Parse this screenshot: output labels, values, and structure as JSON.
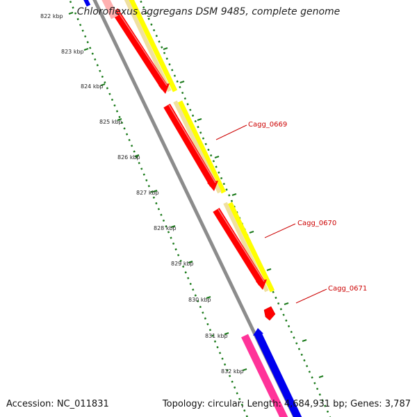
{
  "title": "Chloroflexus aggregans DSM 9485, complete genome",
  "footer": {
    "accession": "Accession: NC_011831",
    "topology": "Topology: circular; Length: 4,684,931 bp; Genes: 3,787"
  },
  "ruler": {
    "unit": "kbp",
    "ticks": [
      {
        "label": "822 kbp"
      },
      {
        "label": "823 kbp"
      },
      {
        "label": "824 kbp"
      },
      {
        "label": "825 kbp"
      },
      {
        "label": "826 kbp"
      },
      {
        "label": "827 kbp"
      },
      {
        "label": "828 kbp"
      },
      {
        "label": "829 kbp"
      },
      {
        "label": "830 kbp"
      },
      {
        "label": "831 kbp"
      },
      {
        "label": "832 kbp"
      }
    ]
  },
  "gene_labels": [
    "Cagg_0669",
    "Cagg_0670",
    "Cagg_0671"
  ],
  "colors": {
    "backbone": "#8c8c8c",
    "gene_red": "#ff0000",
    "cds_yellow": "#ffff00",
    "cds_tan": "#f0e0a0",
    "pink": "#ff3399",
    "blue": "#0000ee",
    "ruler_dots": "#1a7a1a",
    "label_red": "#cc0000"
  }
}
